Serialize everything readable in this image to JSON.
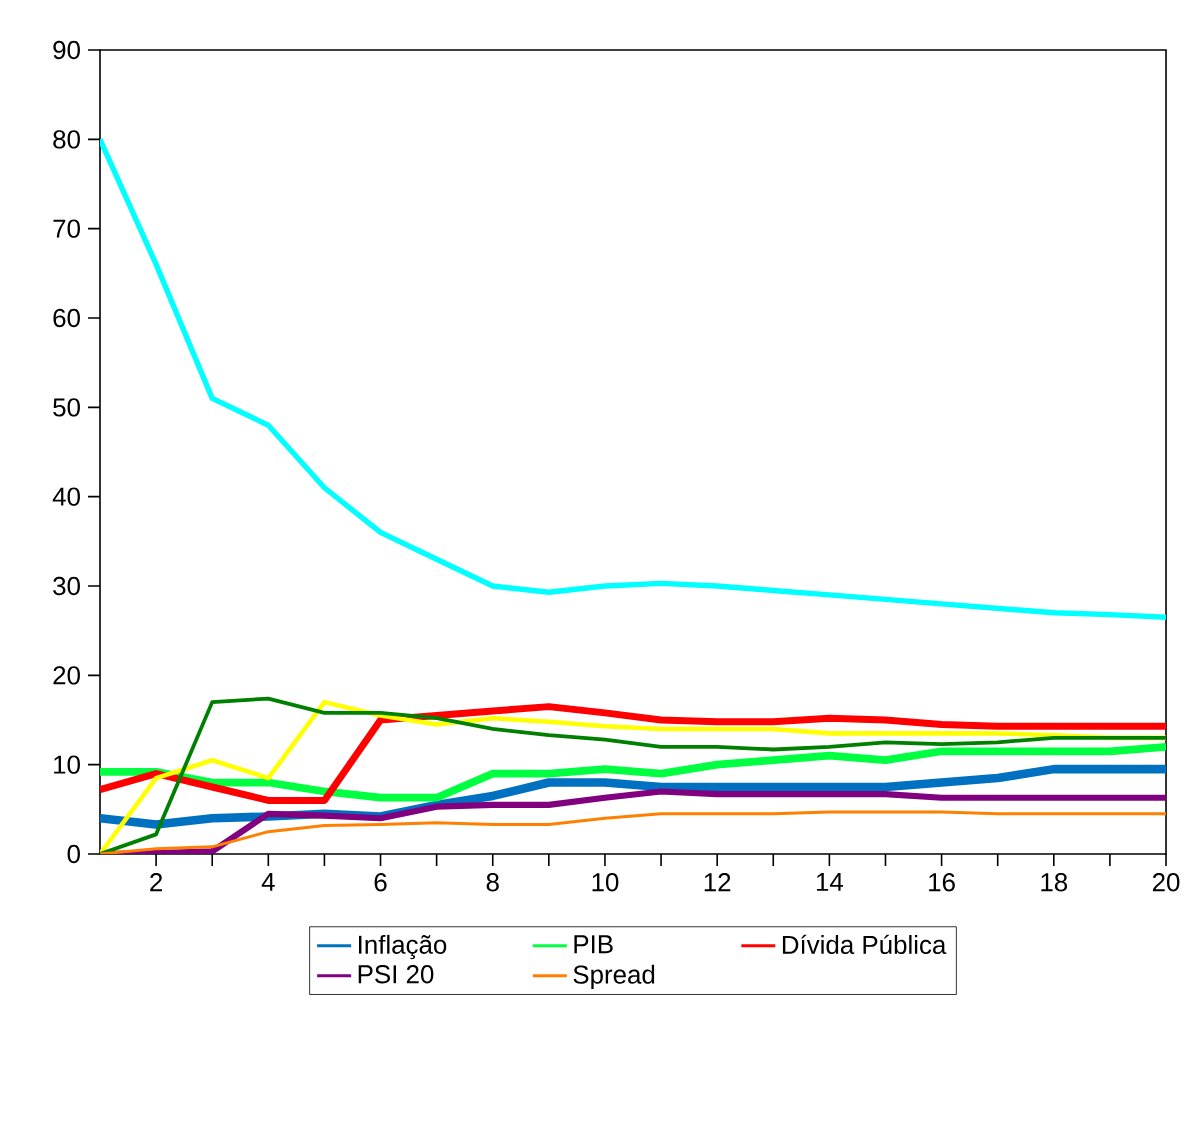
{
  "chart_data": {
    "type": "line",
    "x": [
      1,
      2,
      3,
      4,
      5,
      6,
      7,
      8,
      9,
      10,
      11,
      12,
      13,
      14,
      15,
      16,
      17,
      18,
      19,
      20
    ],
    "xlim": [
      1,
      20
    ],
    "xticks": [
      2,
      {
        "value": 3,
        "label": null
      },
      4,
      {
        "value": 5,
        "label": null
      },
      6,
      {
        "value": 7,
        "label": null
      },
      8,
      {
        "value": 9,
        "label": null
      },
      10,
      {
        "value": 11,
        "label": null
      },
      12,
      {
        "value": 13,
        "label": null
      },
      14,
      {
        "value": 15,
        "label": null
      },
      16,
      {
        "value": 17,
        "label": null
      },
      18,
      {
        "value": 19,
        "label": null
      },
      20
    ],
    "ylim": [
      0,
      90
    ],
    "yticks": [
      0,
      10,
      20,
      30,
      40,
      50,
      60,
      70,
      80,
      90
    ],
    "legend": "bottom",
    "series": [
      {
        "name": "Inflação",
        "color": "#0070c0",
        "values": [
          4,
          3.3,
          4,
          4.2,
          4.5,
          4.2,
          5.5,
          6.5,
          8,
          8,
          7.5,
          7.5,
          7.5,
          7.5,
          7.5,
          8,
          8.5,
          9.5,
          9.5,
          9.5
        ]
      },
      {
        "name": "PIB",
        "color": "#00ff40",
        "values": [
          9.2,
          9.2,
          8,
          8,
          7,
          6.3,
          6.3,
          9,
          9,
          9.5,
          9,
          10,
          10.5,
          11,
          10.5,
          11.5,
          11.5,
          11.5,
          11.5,
          12
        ]
      },
      {
        "name": "Dívida Pública",
        "color": "#ff0000",
        "values": [
          7.2,
          9,
          7.5,
          6,
          6,
          15,
          15.5,
          16,
          16.5,
          15.8,
          15,
          14.8,
          14.8,
          15.2,
          15,
          14.5,
          14.3,
          14.3,
          14.3,
          14.3
        ]
      },
      {
        "name": "PSI 20",
        "color": "#800080",
        "values": [
          0,
          0.1,
          0.3,
          4.5,
          4.3,
          4,
          5.3,
          5.5,
          5.5,
          6.3,
          7,
          6.7,
          6.7,
          6.7,
          6.7,
          6.3,
          6.3,
          6.3,
          6.3,
          6.3
        ]
      },
      {
        "color": "#00ffff",
        "values": [
          80,
          66,
          51,
          48,
          41,
          36,
          33,
          30,
          29.3,
          30,
          30.3,
          30,
          29.5,
          29,
          28.5,
          28,
          27.5,
          27,
          26.8,
          26.5
        ]
      },
      {
        "color": "#ffff00",
        "values": [
          0,
          8.5,
          10.5,
          8.5,
          17,
          15.5,
          14.5,
          15.2,
          14.8,
          14.3,
          14,
          14,
          14,
          13.5,
          13.5,
          13.5,
          13.5,
          13.3,
          13,
          13
        ]
      },
      {
        "color": "#008000",
        "values": [
          0,
          2.2,
          17,
          17.4,
          15.8,
          15.8,
          15.2,
          14,
          13.3,
          12.8,
          12,
          12,
          11.7,
          12,
          12.5,
          12.3,
          12.5,
          13,
          13,
          13
        ]
      },
      {
        "name": "Spread",
        "color": "#ff8000",
        "values": [
          0,
          0.6,
          0.8,
          2.5,
          3.2,
          3.3,
          3.5,
          3.3,
          3.3,
          4,
          4.5,
          4.5,
          4.5,
          4.7,
          4.7,
          4.7,
          4.5,
          4.5,
          4.5,
          4.5
        ]
      }
    ]
  }
}
